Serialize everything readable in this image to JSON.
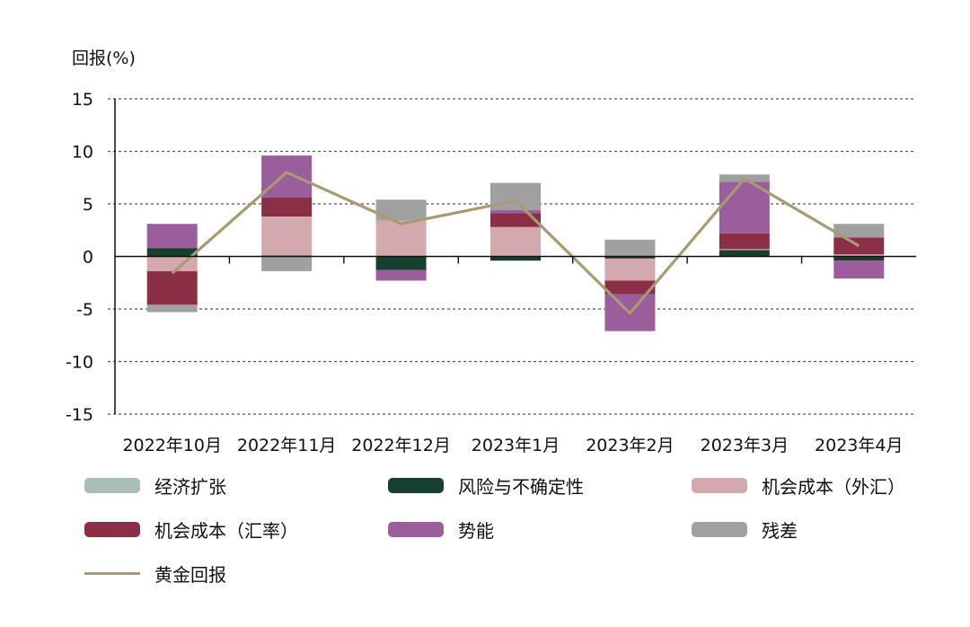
{
  "chart_data": {
    "type": "bar",
    "stacked": true,
    "ylabel": "回报(%)",
    "ylim": [
      -15,
      15
    ],
    "yticks": [
      15,
      10,
      5,
      0,
      -5,
      -10,
      -15
    ],
    "grid": true,
    "legend_position": "bottom",
    "categories": [
      "2022年10月",
      "2022年11月",
      "2022年12月",
      "2023年1月",
      "2023年2月",
      "2023年3月",
      "2023年4月"
    ],
    "series": [
      {
        "name": "经济扩张",
        "type": "bar",
        "color": "#a9bfb6",
        "values": [
          0.0,
          0.0,
          0.0,
          0.0,
          0.0,
          0.0,
          0.0
        ]
      },
      {
        "name": "风险与不确定性",
        "type": "bar",
        "color": "#153f2f",
        "values": [
          0.8,
          0.1,
          -1.3,
          -0.4,
          -0.2,
          0.6,
          -0.4
        ]
      },
      {
        "name": "机会成本（外汇）",
        "type": "bar",
        "color": "#d4a9ae",
        "values": [
          -1.4,
          3.7,
          3.4,
          2.8,
          -2.1,
          0.1,
          0.2
        ]
      },
      {
        "name": "机会成本（汇率）",
        "type": "bar",
        "color": "#8a2f45",
        "values": [
          -3.2,
          1.8,
          0.0,
          1.3,
          -1.3,
          1.5,
          1.6
        ]
      },
      {
        "name": "势能",
        "type": "bar",
        "color": "#9b5d9b",
        "values": [
          2.3,
          4.0,
          -1.0,
          0.3,
          -3.5,
          4.9,
          -1.7
        ]
      },
      {
        "name": "残差",
        "type": "bar",
        "color": "#a0a0a0",
        "values": [
          -0.7,
          -1.4,
          2.0,
          2.6,
          1.6,
          0.7,
          1.3
        ]
      },
      {
        "name": "黄金回报",
        "type": "line",
        "color": "#a89a73",
        "values": [
          -1.6,
          8.0,
          3.1,
          5.3,
          -5.4,
          7.4,
          1.0
        ]
      }
    ]
  }
}
